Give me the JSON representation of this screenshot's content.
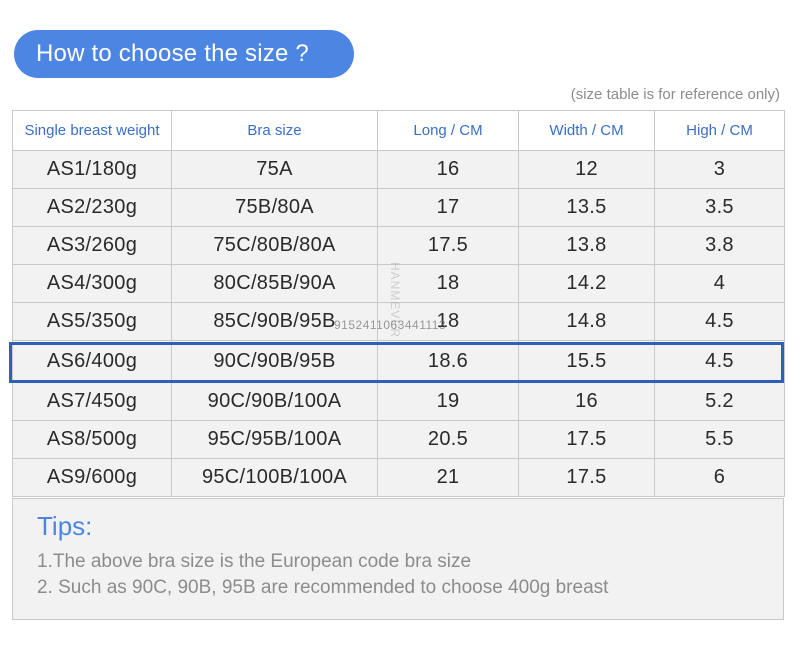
{
  "header": {
    "title": "How to choose the size ?",
    "reference_note": "(size table is for reference only)"
  },
  "table": {
    "columns": [
      "Single breast weight",
      "Bra size",
      "Long / CM",
      "Width / CM",
      "High / CM"
    ],
    "rows": [
      [
        "AS1/180g",
        "75A",
        "16",
        "12",
        "3"
      ],
      [
        "AS2/230g",
        "75B/80A",
        "17",
        "13.5",
        "3.5"
      ],
      [
        "AS3/260g",
        "75C/80B/80A",
        "17.5",
        "13.8",
        "3.8"
      ],
      [
        "AS4/300g",
        "80C/85B/90A",
        "18",
        "14.2",
        "4"
      ],
      [
        "AS5/350g",
        "85C/90B/95B",
        "18",
        "14.8",
        "4.5"
      ],
      [
        "AS6/400g",
        "90C/90B/95B",
        "18.6",
        "15.5",
        "4.5"
      ],
      [
        "AS7/450g",
        "90C/90B/100A",
        "19",
        "16",
        "5.2"
      ],
      [
        "AS8/500g",
        "95C/95B/100A",
        "20.5",
        "17.5",
        "5.5"
      ],
      [
        "AS9/600g",
        "95C/100B/100A",
        "21",
        "17.5",
        "6"
      ]
    ],
    "highlighted_row": "AS6/400g"
  },
  "watermark": {
    "vertical_text": "HANMEVER",
    "id_text": "9152411063441113"
  },
  "tips": {
    "title": "Tips:",
    "lines": [
      "1.The above bra size is the European code bra size",
      "2. Such as 90C, 90B, 95B are recommended to choose 400g breast"
    ]
  },
  "colors": {
    "accent": "#4d86e2",
    "header_text": "#3a6ec7",
    "highlight_border": "#2f5fb8",
    "cell_background": "#f2f2f2",
    "muted_text": "#8c8c8c"
  }
}
